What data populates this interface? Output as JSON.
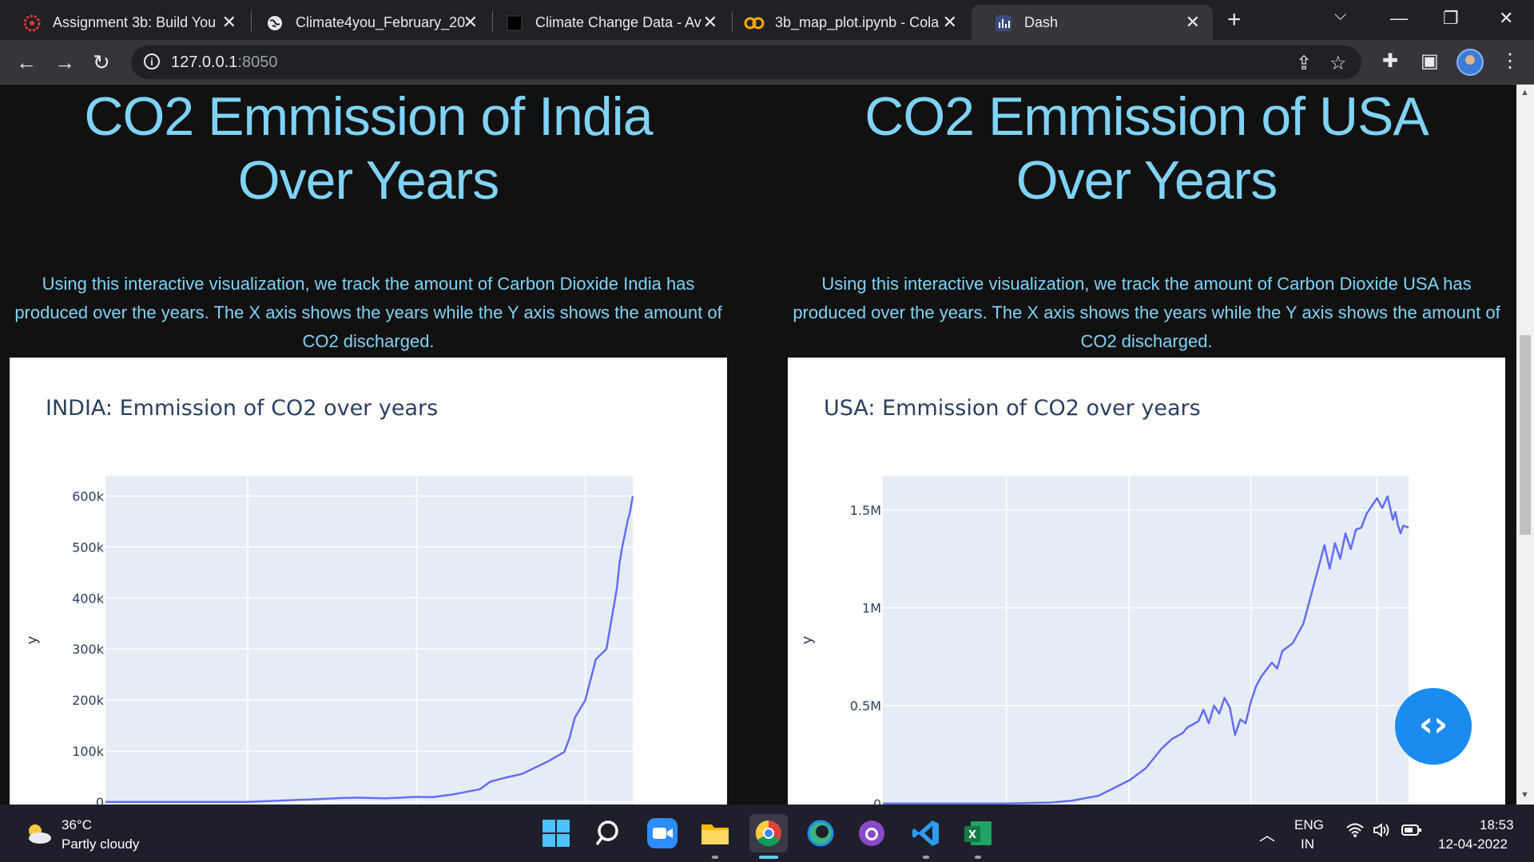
{
  "browser": {
    "tabs": [
      {
        "label": "Assignment 3b: Build You",
        "icon": "cmu-icon"
      },
      {
        "label": "Climate4you_February_20",
        "icon": "globe-icon"
      },
      {
        "label": "Climate Change Data - Av",
        "icon": "black-square-icon"
      },
      {
        "label": "3b_map_plot.ipynb - Cola",
        "icon": "colab-icon"
      },
      {
        "label": "Dash",
        "icon": "dash-icon"
      }
    ],
    "url_host": "127.0.0.1",
    "url_port": ":8050"
  },
  "india": {
    "title_line1": "CO2 Emmission of India",
    "title_line2": "Over Years",
    "description": "Using this interactive visualization, we track the amount of Carbon Dioxide India has produced over the years. The X axis shows the years while the Y axis shows the amount of CO2 discharged.",
    "chart_title": "INDIA: Emmission of CO2 over years"
  },
  "usa": {
    "title_line1": "CO2 Emmission of USA",
    "title_line2": "Over Years",
    "description": "Using this interactive visualization, we track the amount of Carbon Dioxide USA has produced over the years. The X axis shows the years while the Y axis shows the amount of CO2 discharged.",
    "chart_title": "USA: Emmission of CO2 over years"
  },
  "chart_data": [
    {
      "type": "line",
      "title": "INDIA: Emmission of CO2 over years",
      "xlabel": "",
      "ylabel": "y",
      "yticks": [
        "0",
        "100k",
        "200k",
        "300k",
        "400k",
        "500k",
        "600k"
      ],
      "ylim": [
        -5000,
        640000
      ],
      "xlim": [
        0,
        1
      ],
      "line_color": "#636efa",
      "series": [
        {
          "x": [
            0.0,
            0.27,
            0.39,
            0.45,
            0.48,
            0.53,
            0.59,
            0.62,
            0.66,
            0.71,
            0.73,
            0.76,
            0.79,
            0.81,
            0.84,
            0.87,
            0.88,
            0.89,
            0.91,
            0.92,
            0.93,
            0.95,
            0.96,
            0.97,
            0.975,
            0.98,
            0.99,
            0.995,
            1.0
          ],
          "y": [
            0,
            0,
            5000,
            8000,
            8500,
            7000,
            10000,
            9500,
            15000,
            25000,
            40000,
            48000,
            55000,
            65000,
            80000,
            98000,
            125000,
            165000,
            200000,
            240000,
            280000,
            300000,
            360000,
            420000,
            470000,
            500000,
            550000,
            570000,
            600000
          ]
        }
      ]
    },
    {
      "type": "line",
      "title": "USA: Emmission of CO2 over years",
      "xlabel": "",
      "ylabel": "y",
      "yticks": [
        "0",
        "0.5M",
        "1M",
        "1.5M"
      ],
      "ylim": [
        -5000,
        1675000
      ],
      "xlim": [
        0,
        1
      ],
      "line_color": "#636efa",
      "series": [
        {
          "x": [
            0.0,
            0.23,
            0.32,
            0.36,
            0.41,
            0.44,
            0.47,
            0.5,
            0.53,
            0.55,
            0.57,
            0.58,
            0.6,
            0.61,
            0.62,
            0.63,
            0.64,
            0.65,
            0.66,
            0.67,
            0.68,
            0.69,
            0.7,
            0.71,
            0.72,
            0.74,
            0.75,
            0.76,
            0.77,
            0.78,
            0.8,
            0.82,
            0.84,
            0.85,
            0.86,
            0.87,
            0.88,
            0.89,
            0.9,
            0.91,
            0.92,
            0.93,
            0.94,
            0.95,
            0.96,
            0.97,
            0.975,
            0.98,
            0.985,
            0.99,
            1.0
          ],
          "y": [
            0,
            0,
            5000,
            15000,
            40000,
            80000,
            120000,
            180000,
            280000,
            330000,
            360000,
            390000,
            420000,
            480000,
            410000,
            500000,
            460000,
            540000,
            490000,
            350000,
            430000,
            410000,
            520000,
            600000,
            650000,
            720000,
            690000,
            780000,
            800000,
            820000,
            920000,
            1120000,
            1320000,
            1200000,
            1330000,
            1250000,
            1380000,
            1300000,
            1400000,
            1410000,
            1480000,
            1520000,
            1560000,
            1510000,
            1570000,
            1450000,
            1490000,
            1420000,
            1380000,
            1420000,
            1410000
          ]
        }
      ]
    }
  ],
  "overlay": {
    "dev_button": "‹›"
  },
  "taskbar": {
    "temperature": "36°C",
    "weather": "Partly cloudy",
    "lang_line1": "ENG",
    "lang_line2": "IN",
    "time": "18:53",
    "date": "12-04-2022"
  }
}
